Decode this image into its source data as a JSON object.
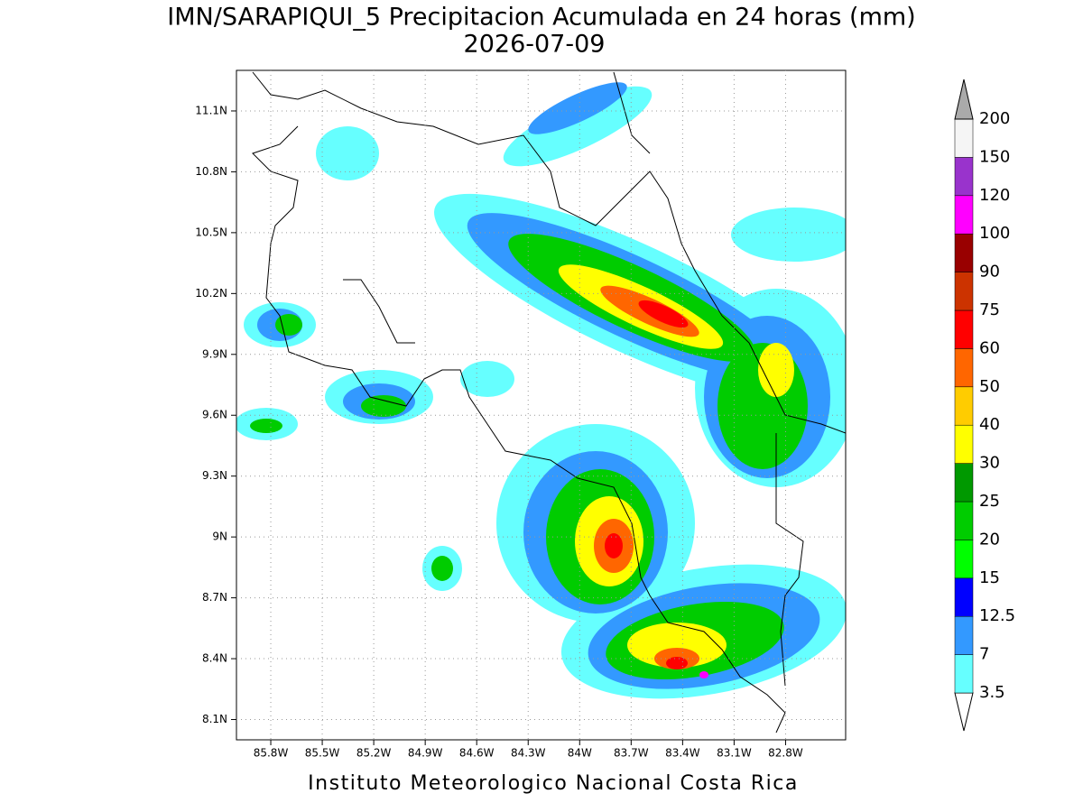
{
  "title": "IMN/SARAPIQUI_5 Precipitacion Acumulada en 24 horas (mm)",
  "subtitle": "2026-07-09",
  "footer": "Instituto Meteorologico Nacional Costa Rica",
  "map": {
    "lonlim": [
      -86.0,
      -82.45
    ],
    "latlim": [
      8.0,
      11.3
    ],
    "lon_ticks": [
      {
        "value": -85.8,
        "label": "85.8W"
      },
      {
        "value": -85.5,
        "label": "85.5W"
      },
      {
        "value": -85.2,
        "label": "85.2W"
      },
      {
        "value": -84.9,
        "label": "84.9W"
      },
      {
        "value": -84.6,
        "label": "84.6W"
      },
      {
        "value": -84.3,
        "label": "84.3W"
      },
      {
        "value": -84.0,
        "label": "84W"
      },
      {
        "value": -83.7,
        "label": "83.7W"
      },
      {
        "value": -83.4,
        "label": "83.4W"
      },
      {
        "value": -83.1,
        "label": "83.1W"
      },
      {
        "value": -82.8,
        "label": "82.8W"
      }
    ],
    "lat_ticks": [
      {
        "value": 11.1,
        "label": "11.1N"
      },
      {
        "value": 10.8,
        "label": "10.8N"
      },
      {
        "value": 10.5,
        "label": "10.5N"
      },
      {
        "value": 10.2,
        "label": "10.2N"
      },
      {
        "value": 9.9,
        "label": "9.9N"
      },
      {
        "value": 9.6,
        "label": "9.6N"
      },
      {
        "value": 9.3,
        "label": "9.3N"
      },
      {
        "value": 9.0,
        "label": "9N"
      },
      {
        "value": 8.7,
        "label": "8.7N"
      },
      {
        "value": 8.4,
        "label": "8.4N"
      },
      {
        "value": 8.1,
        "label": "8.1N"
      }
    ]
  },
  "legend": {
    "levels": [
      3.5,
      7,
      12.5,
      15,
      20,
      25,
      30,
      40,
      50,
      60,
      75,
      90,
      100,
      120,
      150,
      200
    ],
    "colors": [
      "#ffffff",
      "#66ffff",
      "#3399ff",
      "#0000ff",
      "#00ff00",
      "#00cc00",
      "#009900",
      "#ffff00",
      "#ffcc00",
      "#ff6600",
      "#ff0000",
      "#cc3300",
      "#990000",
      "#ff00ff",
      "#9933cc",
      "#f5f5f5",
      "#aaaaaa"
    ]
  }
}
